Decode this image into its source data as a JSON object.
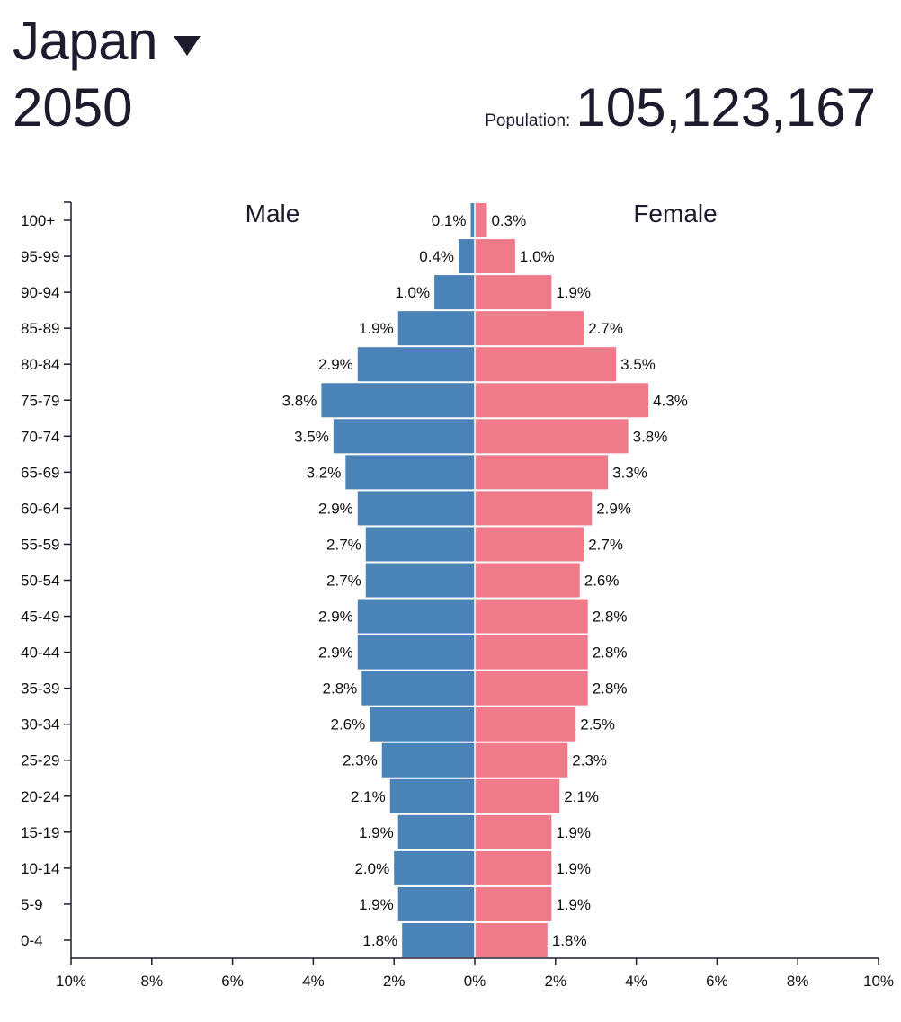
{
  "header": {
    "country": "Japan",
    "year": "2050",
    "population_label": "Population:",
    "population_value": "105,123,167"
  },
  "colors": {
    "male": "#4a83b7",
    "female": "#ef7a89",
    "axis": "#1c1c2e"
  },
  "chart_data": {
    "type": "bar",
    "orientation": "horizontal",
    "title": "Japan 2050",
    "categories": [
      "100+",
      "95-99",
      "90-94",
      "85-89",
      "80-84",
      "75-79",
      "70-74",
      "65-69",
      "60-64",
      "55-59",
      "50-54",
      "45-49",
      "40-44",
      "35-39",
      "30-34",
      "25-29",
      "20-24",
      "15-19",
      "10-14",
      "5-9",
      "0-4"
    ],
    "series": [
      {
        "name": "Male",
        "values": [
          0.1,
          0.4,
          1.0,
          1.9,
          2.9,
          3.8,
          3.5,
          3.2,
          2.9,
          2.7,
          2.7,
          2.9,
          2.9,
          2.8,
          2.6,
          2.3,
          2.1,
          1.9,
          2.0,
          1.9,
          1.8
        ],
        "labels": [
          "0.1%",
          "0.4%",
          "1.0%",
          "1.9%",
          "2.9%",
          "3.8%",
          "3.5%",
          "3.2%",
          "2.9%",
          "2.7%",
          "2.7%",
          "2.9%",
          "2.9%",
          "2.8%",
          "2.6%",
          "2.3%",
          "2.1%",
          "1.9%",
          "2.0%",
          "1.9%",
          "1.8%"
        ]
      },
      {
        "name": "Female",
        "values": [
          0.3,
          1.0,
          1.9,
          2.7,
          3.5,
          4.3,
          3.8,
          3.3,
          2.9,
          2.7,
          2.6,
          2.8,
          2.8,
          2.8,
          2.5,
          2.3,
          2.1,
          1.9,
          1.9,
          1.9,
          1.8
        ],
        "labels": [
          "0.3%",
          "1.0%",
          "1.9%",
          "2.7%",
          "3.5%",
          "4.3%",
          "3.8%",
          "3.3%",
          "2.9%",
          "2.7%",
          "2.6%",
          "2.8%",
          "2.8%",
          "2.8%",
          "2.5%",
          "2.3%",
          "2.1%",
          "1.9%",
          "1.9%",
          "1.9%",
          "1.8%"
        ]
      }
    ],
    "xlim": [
      -10,
      10
    ],
    "xticks": [
      -10,
      -8,
      -6,
      -4,
      -2,
      0,
      2,
      4,
      6,
      8,
      10
    ],
    "xtick_labels": [
      "10%",
      "8%",
      "6%",
      "4%",
      "2%",
      "0%",
      "2%",
      "4%",
      "6%",
      "8%",
      "10%"
    ],
    "grid": false,
    "legend": "series labels at top of each side"
  }
}
